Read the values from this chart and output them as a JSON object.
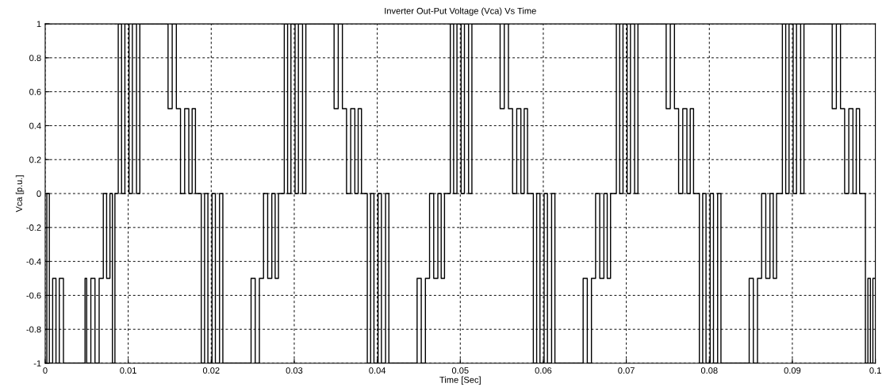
{
  "chart_data": {
    "type": "step",
    "title": "Inverter Out-Put Voltage (Vca) Vs Time",
    "xlabel": "Time [Sec]",
    "ylabel": "Vca [p.u.]",
    "x": [
      0.0,
      0.0002,
      0.0005,
      0.0009,
      0.0013,
      0.0017,
      0.0022,
      0.0048,
      0.005,
      0.0055,
      0.006,
      0.0065,
      0.007,
      0.0074,
      0.0078,
      0.0081,
      0.0084,
      0.0088,
      0.0092,
      0.0096,
      0.0101,
      0.0105,
      0.011,
      0.0114,
      0.0148,
      0.0153,
      0.0158,
      0.0163,
      0.0168,
      0.0173,
      0.0177,
      0.0181,
      0.0188,
      0.0192,
      0.0196,
      0.0201,
      0.0205,
      0.021,
      0.0214,
      0.0248,
      0.0253,
      0.0258,
      0.0263,
      0.0268,
      0.0273,
      0.0277,
      0.0281,
      0.0288,
      0.0292,
      0.0296,
      0.0301,
      0.0305,
      0.031,
      0.0314,
      0.0348,
      0.0353,
      0.0358,
      0.0363,
      0.0368,
      0.0373,
      0.0377,
      0.0381,
      0.0388,
      0.0392,
      0.0396,
      0.0401,
      0.0405,
      0.041,
      0.0414,
      0.0448,
      0.0453,
      0.0458,
      0.0463,
      0.0468,
      0.0473,
      0.0477,
      0.0481,
      0.0488,
      0.0492,
      0.0496,
      0.0501,
      0.0505,
      0.051,
      0.0514,
      0.0548,
      0.0553,
      0.0558,
      0.0563,
      0.0568,
      0.0573,
      0.0577,
      0.0581,
      0.0588,
      0.0592,
      0.0596,
      0.0601,
      0.0605,
      0.061,
      0.0614,
      0.0648,
      0.0653,
      0.0658,
      0.0663,
      0.0668,
      0.0673,
      0.0677,
      0.0681,
      0.0688,
      0.0692,
      0.0696,
      0.0701,
      0.0705,
      0.071,
      0.0714,
      0.0748,
      0.0753,
      0.0758,
      0.0763,
      0.0768,
      0.0773,
      0.0777,
      0.0781,
      0.0788,
      0.0792,
      0.0796,
      0.0801,
      0.0805,
      0.081,
      0.0814,
      0.0848,
      0.0853,
      0.0858,
      0.0863,
      0.0868,
      0.0873,
      0.0877,
      0.0881,
      0.0888,
      0.0892,
      0.0896,
      0.0901,
      0.0905,
      0.091,
      0.0914,
      0.0948,
      0.0953,
      0.0958,
      0.0963,
      0.0968,
      0.0973,
      0.0977,
      0.0981,
      0.0988,
      0.0991,
      0.0994,
      0.0997,
      0.1
    ],
    "series": [
      {
        "color": "#000000",
        "values": [
          -1,
          0,
          -1,
          -0.5,
          -1,
          -0.5,
          -1,
          -0.5,
          -1,
          -0.5,
          -1,
          -0.5,
          0,
          -0.5,
          0,
          -1,
          0,
          1,
          0,
          1,
          0,
          1,
          0,
          1,
          0.5,
          1,
          0.5,
          0,
          0.5,
          0,
          0.5,
          0,
          -1,
          0,
          -1,
          0,
          -1,
          0,
          -1,
          -0.5,
          -1,
          -0.5,
          0,
          -0.5,
          0,
          -0.5,
          0,
          1,
          0,
          1,
          0,
          1,
          0,
          1,
          0.5,
          1,
          0.5,
          0,
          0.5,
          0,
          0.5,
          0,
          -1,
          0,
          -1,
          0,
          -1,
          0,
          -1,
          -0.5,
          -1,
          -0.5,
          0,
          -0.5,
          0,
          -0.5,
          0,
          1,
          0,
          1,
          0,
          1,
          0,
          1,
          0.5,
          1,
          0.5,
          0,
          0.5,
          0,
          0.5,
          0,
          -1,
          0,
          -1,
          0,
          -1,
          0,
          -1,
          -0.5,
          -1,
          -0.5,
          0,
          -0.5,
          0,
          -0.5,
          0,
          1,
          0,
          1,
          0,
          1,
          0,
          1,
          0.5,
          1,
          0.5,
          0,
          0.5,
          0,
          0.5,
          0,
          -1,
          0,
          -1,
          0,
          -1,
          0,
          -1,
          -0.5,
          -1,
          -0.5,
          0,
          -0.5,
          0,
          -0.5,
          0,
          1,
          0,
          1,
          0,
          1,
          0,
          1,
          0.5,
          1,
          0.5,
          0,
          0.5,
          0,
          0.5,
          0,
          -1,
          -0.5,
          -1,
          -0.5,
          -0.5
        ]
      }
    ],
    "xlim": [
      0,
      0.1
    ],
    "ylim": [
      -1,
      1
    ],
    "xticks": [
      0,
      0.01,
      0.02,
      0.03,
      0.04,
      0.05,
      0.06,
      0.07,
      0.08,
      0.09,
      0.1
    ],
    "yticks": [
      -1,
      -0.8,
      -0.6,
      -0.4,
      -0.2,
      0,
      0.2,
      0.4,
      0.6,
      0.8,
      1
    ],
    "grid": true
  }
}
